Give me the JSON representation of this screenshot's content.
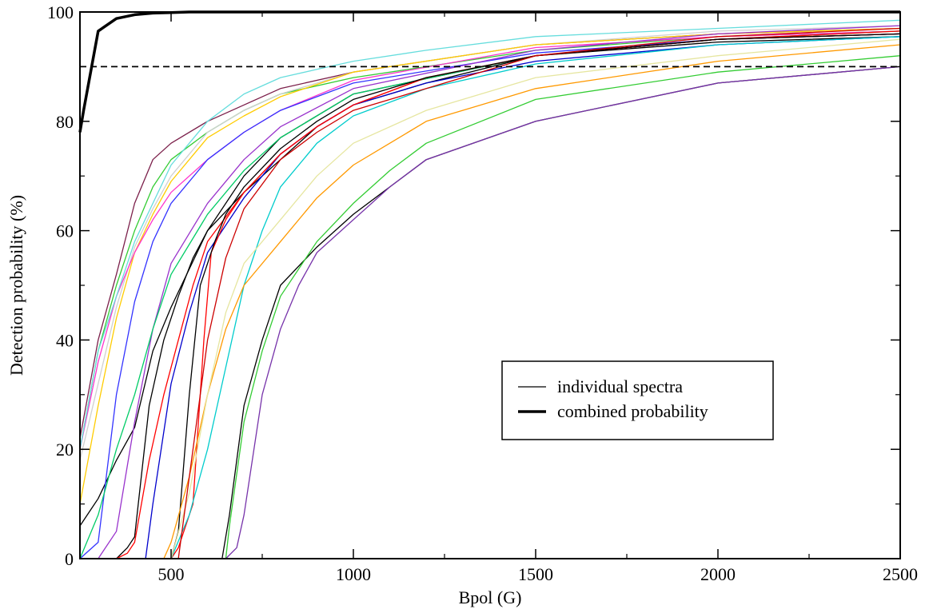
{
  "chart_data": {
    "type": "line",
    "xlabel": "Bpol (G)",
    "ylabel": "Detection probability (%)",
    "xlim": [
      250,
      2500
    ],
    "ylim": [
      0,
      100
    ],
    "x_ticks": [
      500,
      1000,
      1500,
      2000,
      2500
    ],
    "y_ticks": [
      0,
      20,
      40,
      60,
      80,
      100
    ],
    "x_tick_labels": [
      "500",
      "1000",
      "1500",
      "2000",
      "2500"
    ],
    "y_tick_labels": [
      "0",
      "20",
      "40",
      "60",
      "80",
      "100"
    ],
    "grid": false,
    "legend": {
      "position": "center-right",
      "entries": [
        {
          "label": "individual spectra",
          "style": "thin"
        },
        {
          "label": "combined probability",
          "style": "thick"
        }
      ]
    },
    "reference_lines": [
      {
        "y": 90,
        "style": "dashed",
        "color": "#000000"
      }
    ],
    "combined": {
      "color": "#000000",
      "x": [
        250,
        260,
        300,
        350,
        400,
        450,
        500,
        550,
        600,
        700,
        800,
        1000,
        1500,
        2000,
        2500
      ],
      "y": [
        78,
        82,
        96.5,
        98.8,
        99.5,
        99.8,
        99.9,
        100,
        100,
        100,
        100,
        100,
        100,
        100,
        100
      ]
    },
    "series": [
      {
        "color": "#7b1f4a",
        "x": [
          250,
          300,
          350,
          400,
          450,
          500,
          600,
          700,
          800,
          1000,
          1500,
          2000,
          2500
        ],
        "y": [
          22,
          40,
          52,
          65,
          73,
          76,
          80,
          83,
          86,
          89,
          94,
          96,
          97
        ]
      },
      {
        "color": "#33cc33",
        "x": [
          250,
          300,
          350,
          400,
          450,
          500,
          600,
          700,
          800,
          1000,
          1500,
          2000,
          2500
        ],
        "y": [
          20,
          38,
          50,
          60,
          68,
          73,
          78,
          82,
          85,
          88,
          93,
          95.5,
          96.5
        ]
      },
      {
        "color": "#d0d0d0",
        "x": [
          250,
          300,
          350,
          400,
          450,
          500,
          600,
          700,
          800,
          1000,
          1500,
          2000,
          2500
        ],
        "y": [
          18,
          32,
          46,
          57,
          64,
          70,
          78,
          82,
          85,
          89,
          94,
          96.5,
          97.5
        ]
      },
      {
        "color": "#ffcc00",
        "x": [
          250,
          300,
          350,
          400,
          450,
          500,
          600,
          700,
          800,
          1000,
          1500,
          2000,
          2500
        ],
        "y": [
          10,
          28,
          44,
          56,
          63,
          69,
          77,
          81,
          84.5,
          89,
          94,
          96,
          97
        ]
      },
      {
        "color": "#ff33cc",
        "x": [
          250,
          300,
          350,
          400,
          450,
          500,
          600,
          700,
          800,
          1000,
          1500,
          2000,
          2500
        ],
        "y": [
          20,
          36,
          48,
          56,
          62,
          67,
          73,
          78,
          82,
          87.5,
          93.5,
          95.5,
          96.5
        ]
      },
      {
        "color": "#000000",
        "x": [
          250,
          300,
          350,
          400,
          450,
          500,
          600,
          700,
          800,
          1000,
          1500,
          2000,
          2500
        ],
        "y": [
          6,
          11,
          18,
          24,
          38,
          46,
          60,
          70,
          77,
          85,
          92,
          94.5,
          95.5
        ]
      },
      {
        "color": "#3333ff",
        "x": [
          250,
          300,
          350,
          400,
          450,
          500,
          600,
          700,
          800,
          1000,
          1500,
          2000,
          2500
        ],
        "y": [
          0,
          3,
          30,
          47,
          58,
          65,
          73,
          78,
          82,
          87,
          92.5,
          95,
          96
        ]
      },
      {
        "color": "#9933cc",
        "x": [
          250,
          300,
          350,
          400,
          450,
          500,
          600,
          700,
          800,
          1000,
          1500,
          2000,
          2500
        ],
        "y": [
          0,
          0,
          5,
          25,
          42,
          54,
          65,
          73,
          79,
          86,
          93,
          96,
          97.5
        ]
      },
      {
        "color": "#00cc66",
        "x": [
          250,
          300,
          350,
          400,
          450,
          500,
          600,
          700,
          800,
          1000,
          1500,
          2000,
          2500
        ],
        "y": [
          0,
          8,
          20,
          30,
          42,
          52,
          63,
          71,
          77,
          85,
          92,
          95,
          96.5
        ]
      },
      {
        "color": "#000000",
        "x": [
          350,
          380,
          400,
          440,
          480,
          520,
          560,
          600,
          700,
          800,
          900,
          1000,
          1200,
          1500,
          2000,
          2500
        ],
        "y": [
          0,
          2,
          4,
          28,
          40,
          48,
          55,
          60,
          67,
          73,
          79,
          83,
          87,
          92,
          95,
          96
        ]
      },
      {
        "color": "#ff0000",
        "x": [
          350,
          380,
          400,
          440,
          480,
          520,
          560,
          600,
          700,
          800,
          900,
          1000,
          1200,
          1500,
          2000,
          2500
        ],
        "y": [
          0,
          1,
          3,
          18,
          30,
          40,
          50,
          58,
          67,
          74,
          79,
          83,
          88,
          92,
          95,
          96.5
        ]
      },
      {
        "color": "#0000cc",
        "x": [
          400,
          430,
          450,
          500,
          550,
          600,
          700,
          800,
          900,
          1000,
          1200,
          1500,
          2000,
          2500
        ],
        "y": [
          0,
          0,
          10,
          32,
          45,
          56,
          66,
          74,
          79,
          83,
          87,
          91,
          94,
          95.5
        ]
      },
      {
        "color": "#ff0000",
        "x": [
          500,
          520,
          560,
          590,
          610,
          650,
          700,
          800,
          900,
          1000,
          1200,
          1500,
          2000,
          2500
        ],
        "y": [
          0,
          2,
          10,
          40,
          56,
          62,
          67,
          74,
          79,
          83,
          88,
          92,
          95,
          96
        ]
      },
      {
        "color": "#000000",
        "x": [
          500,
          520,
          550,
          580,
          620,
          650,
          700,
          800,
          900,
          1000,
          1200,
          1500,
          2000,
          2500
        ],
        "y": [
          0,
          5,
          30,
          50,
          58,
          63,
          68,
          75,
          80,
          84,
          88,
          92,
          95,
          96
        ]
      },
      {
        "color": "#00cccc",
        "x": [
          500,
          550,
          600,
          650,
          700,
          750,
          800,
          900,
          1000,
          1200,
          1500,
          2000,
          2500
        ],
        "y": [
          0,
          8,
          20,
          35,
          50,
          60,
          68,
          76,
          81,
          86,
          90.5,
          94,
          95.5
        ]
      },
      {
        "color": "#ff9900",
        "x": [
          480,
          500,
          550,
          600,
          650,
          700,
          800,
          900,
          1000,
          1100,
          1200,
          1500,
          2000,
          2500
        ],
        "y": [
          0,
          3,
          15,
          30,
          42,
          50,
          58,
          66,
          72,
          76,
          80,
          86,
          91,
          94
        ]
      },
      {
        "color": "#e6e6a0",
        "x": [
          500,
          550,
          600,
          650,
          700,
          800,
          900,
          1000,
          1200,
          1500,
          2000,
          2500
        ],
        "y": [
          0,
          12,
          30,
          45,
          54,
          62,
          70,
          76,
          82,
          88,
          92,
          95
        ]
      },
      {
        "color": "#000000",
        "x": [
          600,
          640,
          660,
          700,
          750,
          800,
          900,
          1000,
          1100,
          1200,
          1500,
          2000,
          2500
        ],
        "y": [
          0,
          0,
          8,
          28,
          40,
          50,
          57,
          63,
          68,
          73,
          80,
          87,
          90
        ]
      },
      {
        "color": "#33cc33",
        "x": [
          600,
          650,
          660,
          700,
          750,
          800,
          900,
          1000,
          1100,
          1200,
          1500,
          2000,
          2500
        ],
        "y": [
          0,
          0,
          6,
          25,
          38,
          48,
          58,
          65,
          71,
          76,
          84,
          89,
          92
        ]
      },
      {
        "color": "#7733aa",
        "x": [
          650,
          680,
          700,
          750,
          800,
          850,
          900,
          1000,
          1100,
          1200,
          1500,
          2000,
          2500
        ],
        "y": [
          0,
          2,
          8,
          30,
          42,
          50,
          56,
          62,
          68,
          73,
          80,
          87,
          90
        ]
      },
      {
        "color": "#66dddd",
        "x": [
          250,
          300,
          400,
          500,
          600,
          700,
          800,
          900,
          1000,
          1200,
          1500,
          2000,
          2500
        ],
        "y": [
          20,
          38,
          58,
          72,
          80,
          85,
          88,
          89.5,
          91,
          93,
          95.5,
          97,
          98.5
        ]
      },
      {
        "color": "#cc0000",
        "x": [
          520,
          560,
          600,
          650,
          700,
          800,
          900,
          1000,
          1200,
          1500,
          2000,
          2500
        ],
        "y": [
          0,
          20,
          40,
          55,
          64,
          73,
          78,
          82,
          86,
          92,
          95.5,
          97
        ]
      }
    ]
  }
}
